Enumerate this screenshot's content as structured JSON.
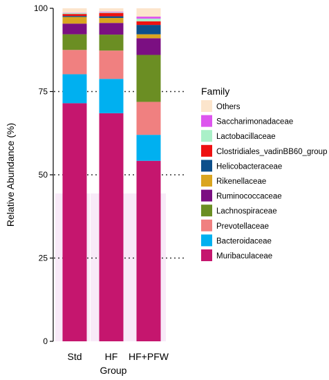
{
  "chart_data": {
    "type": "bar",
    "stacked": true,
    "xlabel": "Group",
    "ylabel": "Relative Abundance (%)",
    "ylim": [
      0,
      100
    ],
    "yticks": [
      0,
      25,
      50,
      75,
      100
    ],
    "grid": "dotted lines at 25, 50, 75",
    "categories": [
      "Std",
      "HF",
      "HF+PFW"
    ],
    "legend_title": "Family",
    "legend_position": "right",
    "series": [
      {
        "name": "Muribaculaceae",
        "color": "#C5166E",
        "values": [
          71.5,
          68.5,
          54.2
        ]
      },
      {
        "name": "Bacteroidaceae",
        "color": "#00B0F0",
        "values": [
          8.7,
          10.3,
          7.8
        ]
      },
      {
        "name": "Prevotellaceae",
        "color": "#F08080",
        "values": [
          7.3,
          8.5,
          9.9
        ]
      },
      {
        "name": "Lachnospiraceae",
        "color": "#6B8E23",
        "values": [
          4.7,
          4.8,
          14.1
        ]
      },
      {
        "name": "Ruminococcaceae",
        "color": "#7B0F82",
        "values": [
          3.2,
          3.5,
          5.0
        ]
      },
      {
        "name": "Rikenellaceae",
        "color": "#DAA520",
        "values": [
          2.0,
          1.5,
          1.2
        ]
      },
      {
        "name": "Helicobacteraceae",
        "color": "#0D4F8B",
        "values": [
          0.3,
          0.5,
          2.8
        ]
      },
      {
        "name": "Clostridiales_vadinBB60_group",
        "color": "#EE1111",
        "values": [
          0.6,
          1.0,
          1.1
        ]
      },
      {
        "name": "Lactobacillaceae",
        "color": "#AAF0C8",
        "values": [
          0.3,
          0.2,
          0.8
        ]
      },
      {
        "name": "Saccharimonadaceae",
        "color": "#DD55EE",
        "values": [
          0.1,
          0.2,
          0.6
        ]
      },
      {
        "name": "Others",
        "color": "#FCE5CC",
        "values": [
          1.3,
          1.0,
          2.5
        ]
      }
    ]
  }
}
